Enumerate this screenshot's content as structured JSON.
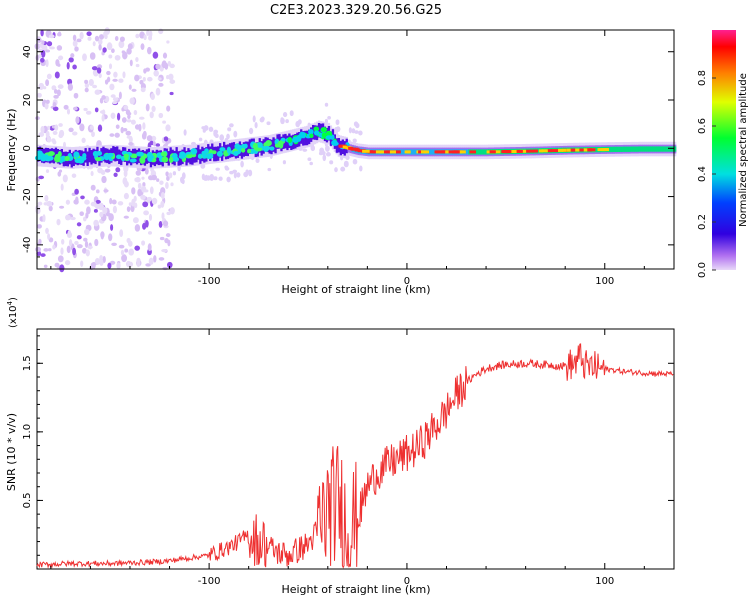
{
  "title": "C2E3.2023.329.20.56.G25",
  "chart_data": [
    {
      "type": "heatmap",
      "title": "C2E3.2023.329.20.56.G25",
      "xlabel": "Height of straight line (km)",
      "ylabel": "Frequency (Hz)",
      "xlim": [
        -187,
        135
      ],
      "ylim": [
        -50,
        49
      ],
      "x_ticks": [
        -100,
        0,
        100
      ],
      "x_tick_labels": [
        "-100",
        "0",
        "100"
      ],
      "y_ticks": [
        -40,
        -20,
        0,
        20,
        40
      ],
      "y_tick_labels": [
        "-40",
        "-20",
        "0",
        "20",
        "40"
      ],
      "ridge": {
        "x": [
          -187,
          -170,
          -150,
          -130,
          -110,
          -90,
          -80,
          -70,
          -60,
          -50,
          -45,
          -40,
          -35,
          -30,
          -25,
          -20,
          -10,
          0,
          20,
          40,
          60,
          80,
          100,
          120,
          135
        ],
        "frequency": [
          -3,
          -4,
          -3,
          -4,
          -3,
          -1,
          0,
          1,
          3,
          5,
          7,
          6,
          1,
          0,
          -1,
          -1.5,
          -1.5,
          -1.5,
          -1.5,
          -1.5,
          -1.2,
          -0.8,
          -0.5,
          -0.3,
          -0.3
        ]
      },
      "colorbar": {
        "label": "Normalized spectral amplitude",
        "range": [
          0,
          1
        ],
        "ticks": [
          0.0,
          0.2,
          0.4,
          0.6,
          0.8
        ],
        "tick_labels": [
          "0.0",
          "0.2",
          "0.4",
          "0.6",
          "0.8"
        ]
      }
    },
    {
      "type": "line",
      "xlabel": "Height of straight line (km)",
      "ylabel": "SNR (10 * v/v)",
      "exponent_label": "(x10",
      "exponent_power": "4",
      "exponent_close": ")",
      "xlim": [
        -187,
        135
      ],
      "ylim": [
        0,
        1.75
      ],
      "x_ticks": [
        -100,
        0,
        100
      ],
      "x_tick_labels": [
        "-100",
        "0",
        "100"
      ],
      "y_ticks": [
        0.5,
        1.0,
        1.5
      ],
      "y_tick_labels": [
        "0.5",
        "1.0",
        "1.5"
      ],
      "color": "#ee3030",
      "series": [
        {
          "name": "SNR",
          "x": [
            -187,
            -170,
            -150,
            -130,
            -120,
            -110,
            -100,
            -95,
            -90,
            -85,
            -80,
            -75,
            -70,
            -65,
            -60,
            -55,
            -50,
            -45,
            -40,
            -35,
            -30,
            -25,
            -20,
            -15,
            -10,
            -5,
            0,
            5,
            10,
            15,
            20,
            25,
            30,
            35,
            40,
            45,
            50,
            60,
            70,
            80,
            85,
            88,
            90,
            95,
            100,
            110,
            120,
            135
          ],
          "y": [
            0.03,
            0.04,
            0.04,
            0.05,
            0.06,
            0.08,
            0.1,
            0.13,
            0.16,
            0.2,
            0.25,
            0.22,
            0.16,
            0.12,
            0.1,
            0.14,
            0.18,
            0.28,
            0.42,
            0.5,
            0.3,
            0.35,
            0.6,
            0.7,
            0.76,
            0.8,
            0.84,
            0.88,
            0.96,
            1.05,
            1.15,
            1.27,
            1.36,
            1.42,
            1.46,
            1.48,
            1.49,
            1.5,
            1.49,
            1.48,
            1.5,
            1.55,
            1.48,
            1.47,
            1.46,
            1.44,
            1.43,
            1.42
          ]
        }
      ]
    }
  ]
}
